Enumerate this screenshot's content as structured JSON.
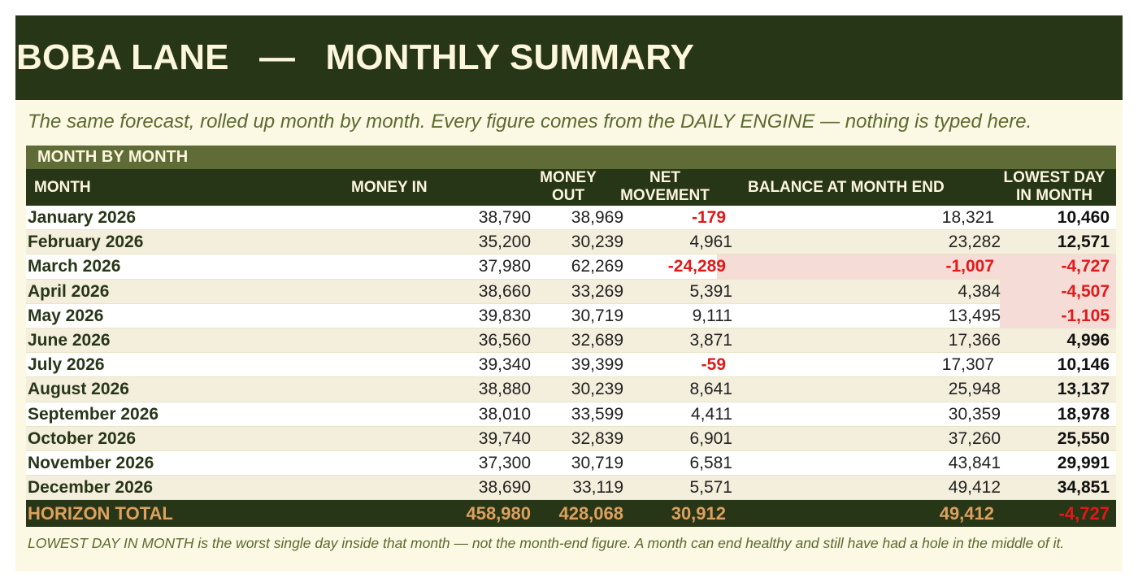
{
  "banner": {
    "title": "BOBA LANE   —   MONTHLY SUMMARY"
  },
  "subtitle": "The same forecast, rolled up month by month. Every figure comes from the DAILY ENGINE — nothing is typed here.",
  "section": {
    "label": "MONTH BY MONTH"
  },
  "columns": {
    "month": "MONTH",
    "money_in": "MONEY IN",
    "money_out": "MONEY\nOUT",
    "net_movement": "NET\nMOVEMENT",
    "balance": "BALANCE AT MONTH END",
    "lowest_day": "LOWEST DAY\nIN MONTH"
  },
  "rows": [
    {
      "month": "January 2026",
      "money_in": "38,790",
      "money_out": "38,969",
      "net": "-179",
      "balance": "18,321",
      "lowest": "10,460"
    },
    {
      "month": "February 2026",
      "money_in": "35,200",
      "money_out": "30,239",
      "net": "4,961",
      "balance": "23,282",
      "lowest": "12,571"
    },
    {
      "month": "March 2026",
      "money_in": "37,980",
      "money_out": "62,269",
      "net": "-24,289",
      "balance": "-1,007",
      "lowest": "-4,727"
    },
    {
      "month": "April 2026",
      "money_in": "38,660",
      "money_out": "33,269",
      "net": "5,391",
      "balance": "4,384",
      "lowest": "-4,507"
    },
    {
      "month": "May 2026",
      "money_in": "39,830",
      "money_out": "30,719",
      "net": "9,111",
      "balance": "13,495",
      "lowest": "-1,105"
    },
    {
      "month": "June 2026",
      "money_in": "36,560",
      "money_out": "32,689",
      "net": "3,871",
      "balance": "17,366",
      "lowest": "4,996"
    },
    {
      "month": "July 2026",
      "money_in": "39,340",
      "money_out": "39,399",
      "net": "-59",
      "balance": "17,307",
      "lowest": "10,146"
    },
    {
      "month": "August 2026",
      "money_in": "38,880",
      "money_out": "30,239",
      "net": "8,641",
      "balance": "25,948",
      "lowest": "13,137"
    },
    {
      "month": "September 2026",
      "money_in": "38,010",
      "money_out": "33,599",
      "net": "4,411",
      "balance": "30,359",
      "lowest": "18,978"
    },
    {
      "month": "October 2026",
      "money_in": "39,740",
      "money_out": "32,839",
      "net": "6,901",
      "balance": "37,260",
      "lowest": "25,550"
    },
    {
      "month": "November 2026",
      "money_in": "37,300",
      "money_out": "30,719",
      "net": "6,581",
      "balance": "43,841",
      "lowest": "29,991"
    },
    {
      "month": "December 2026",
      "money_in": "38,690",
      "money_out": "33,119",
      "net": "5,571",
      "balance": "49,412",
      "lowest": "34,851"
    }
  ],
  "total": {
    "label": "HORIZON TOTAL",
    "money_in": "458,980",
    "money_out": "428,068",
    "net": "30,912",
    "balance": "49,412",
    "lowest": "-4,727"
  },
  "footnote": "LOWEST DAY IN MONTH is the worst single day inside that month — not the month-end figure. A month can end healthy and still have had a hole in the middle of it.",
  "colors": {
    "banner": "#283618",
    "section": "#606c38",
    "negative": "#e01919",
    "total_text": "#dda15e",
    "highlight": "#f6dcd6"
  }
}
